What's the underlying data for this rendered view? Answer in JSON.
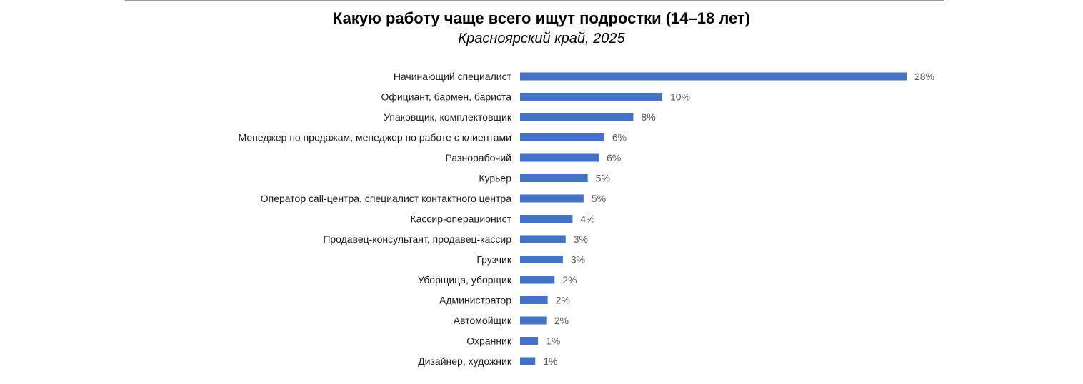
{
  "chart_data": {
    "type": "bar",
    "orientation": "horizontal",
    "title": "Какую работу чаще всего ищут подростки (14–18 лет)",
    "subtitle": "Красноярский край,  2025",
    "categories": [
      "Начинающий  специалист",
      "Официант, бармен, бариста",
      "Упаковщик, комплектовщик",
      "Менеджер по продажам, менеджер по работе с клиентами",
      "Разнорабочий",
      "Курьер",
      "Оператор call-центра, специалист контактного центра",
      "Кассир-операционист",
      "Продавец-консультант, продавец-кассир",
      "Грузчик",
      "Уборщица, уборщик",
      "Администратор",
      "Автомойщик",
      "Охранник",
      "Дизайнер, художник"
    ],
    "values": [
      28,
      10.3,
      8.2,
      6.1,
      5.7,
      4.9,
      4.6,
      3.8,
      3.3,
      3.1,
      2.5,
      2.0,
      1.9,
      1.3,
      1.1
    ],
    "value_labels": [
      "28%",
      "10%",
      "8%",
      "6%",
      "6%",
      "5%",
      "5%",
      "4%",
      "3%",
      "3%",
      "2%",
      "2%",
      "2%",
      "1%",
      "1%"
    ],
    "xlim": [
      0,
      28
    ],
    "grid": false,
    "legend": "none",
    "bar_color": "#4472c4"
  }
}
